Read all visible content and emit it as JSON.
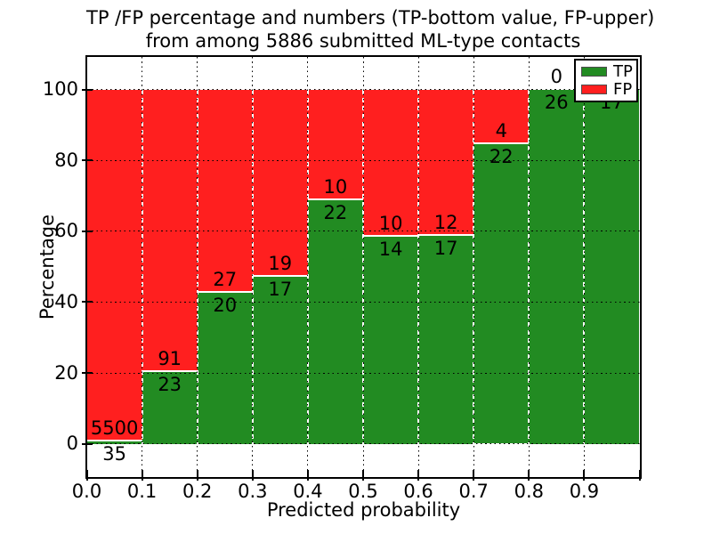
{
  "figure": {
    "background": "#ffffff",
    "total_contacts": 5886
  },
  "chart_data": {
    "type": "bar",
    "stacked": true,
    "title": "TP /FP percentage and numbers (TP-bottom value, FP-upper)\nfrom among 5886 submitted ML-type contacts",
    "title_lines": [
      "TP /FP percentage and numbers (TP-bottom value, FP-upper)",
      "from among 5886 submitted ML-type contacts"
    ],
    "xlabel": "Predicted probability",
    "ylabel": "Percentage",
    "xlim": [
      0.0,
      1.0
    ],
    "ylim": [
      -9.4,
      109.2
    ],
    "x_tick_labels": [
      "0.0",
      "0.1",
      "0.2",
      "0.3",
      "0.4",
      "0.5",
      "0.6",
      "0.7",
      "0.8",
      "0.9"
    ],
    "y_tick_values": [
      0,
      20,
      40,
      60,
      80,
      100
    ],
    "grid": true,
    "grid_style": {
      "horizontal": "black-dotted-over-bars",
      "vertical_below_bars": "black-dotted",
      "bar_dividers": "white-dashed"
    },
    "categories": [
      "0.0-0.1",
      "0.1-0.2",
      "0.2-0.3",
      "0.3-0.4",
      "0.4-0.5",
      "0.5-0.6",
      "0.6-0.7",
      "0.7-0.8",
      "0.8-0.9",
      "0.9-1.0"
    ],
    "series": [
      {
        "name": "TP",
        "color": "#228b22",
        "counts": [
          35,
          23,
          20,
          17,
          22,
          14,
          17,
          22,
          26,
          17
        ],
        "percent_of_bin": [
          0.6,
          20.2,
          42.6,
          47.2,
          68.8,
          58.3,
          58.6,
          84.6,
          100.0,
          100.0
        ]
      },
      {
        "name": "FP",
        "color": "#ff1f1f",
        "counts": [
          5500,
          91,
          27,
          19,
          10,
          10,
          12,
          4,
          0,
          0
        ],
        "percent_of_bin": [
          99.4,
          79.8,
          57.4,
          52.8,
          31.2,
          41.7,
          41.4,
          15.4,
          0.0,
          0.0
        ]
      }
    ],
    "legend": {
      "position": "upper-right",
      "entries": [
        "TP",
        "FP"
      ]
    }
  }
}
